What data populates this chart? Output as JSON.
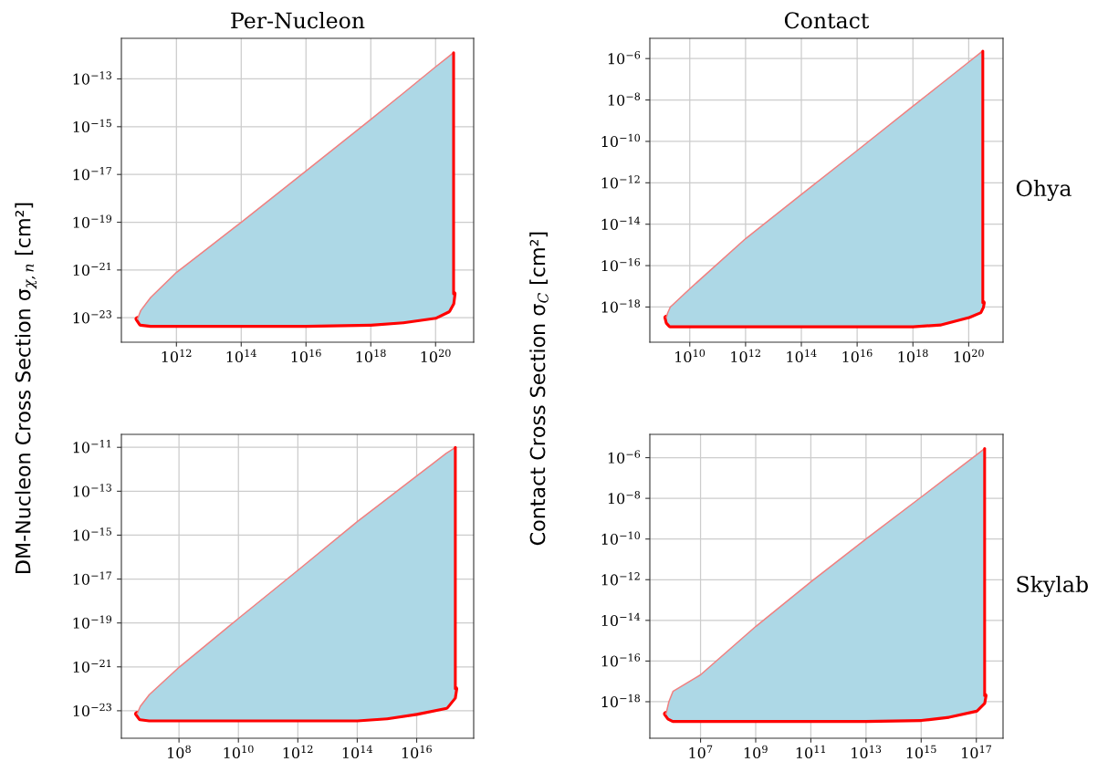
{
  "chart_data": [
    {
      "type": "area",
      "title": "Per-Nucleon",
      "ylabel": "DM-Nucleon Cross Section σ$_{χ,n}$ [cm²]",
      "log": "xy",
      "grid": true,
      "xlim": [
        20000000000.0,
        1.5e+21
      ],
      "ylim": [
        9.5e-25,
        5e-12
      ],
      "xticks": [
        {
          "value": 1000000000000.0,
          "label": "10$^{12}$"
        },
        {
          "value": 100000000000000.0,
          "label": "10$^{14}$"
        },
        {
          "value": 1e+16,
          "label": "10$^{16}$"
        },
        {
          "value": 1e+18,
          "label": "10$^{18}$"
        },
        {
          "value": 1e+20,
          "label": "10$^{20}$"
        }
      ],
      "yticks": [
        {
          "value": 1e-23,
          "label": "10$^{−23}$"
        },
        {
          "value": 1e-21,
          "label": "10$^{−21}$"
        },
        {
          "value": 1e-19,
          "label": "10$^{−19}$"
        },
        {
          "value": 1e-17,
          "label": "10$^{−17}$"
        },
        {
          "value": 1e-15,
          "label": "10$^{−15}$"
        },
        {
          "value": 1e-13,
          "label": "10$^{−13}$"
        }
      ],
      "series": [
        {
          "type": "area",
          "color": "#add8e6",
          "x": [
            63000000000.0,
            79000000000.0,
            160000000000.0,
            1000000000000.0,
            10000000000000.0,
            100000000000000.0,
            1e+16,
            1e+18,
            1e+19,
            1e+20,
            2.5e+20,
            3.3e+20,
            3.6e+20
          ],
          "values": [
            8.9e-24,
            2e-23,
            7.1e-23,
            7.9e-22,
            8.9e-21,
            1e-19,
            1.4e-17,
            2e-15,
            2.5e-14,
            3.2e-13,
            8.5e-13,
            1.15e-12,
            1.26e-12
          ]
        },
        {
          "type": "line",
          "color": "#f08080",
          "x": [
            63000000000.0,
            79000000000.0,
            160000000000.0,
            1000000000000.0,
            10000000000000.0,
            100000000000000.0,
            1e+16,
            1e+18,
            1e+19,
            1e+20,
            2.5e+20,
            3.3e+20,
            3.6e+20
          ],
          "values": [
            8.9e-24,
            2e-23,
            7.1e-23,
            7.9e-22,
            8.9e-21,
            1e-19,
            1.4e-17,
            2e-15,
            2.5e-14,
            3.2e-13,
            8.5e-13,
            1.15e-12,
            1.26e-12
          ]
        },
        {
          "type": "line",
          "color": "#ff0000",
          "x": [
            63000000000.0,
            79000000000.0,
            160000000000.0,
            1000000000000.0,
            10000000000000.0,
            100000000000000.0,
            1e+16,
            1e+18,
            1e+19,
            1e+20,
            2.5e+20,
            3.3e+20,
            3.6e+20
          ],
          "values": [
            8.9e-24,
            5.6e-24,
            5e-24,
            5e-24,
            5e-24,
            5e-24,
            5e-24,
            5.6e-24,
            7.1e-24,
            1.1e-23,
            2e-23,
            4e-23,
            1e-22
          ]
        },
        {
          "type": "line",
          "color": "#ff0000",
          "x": [
            3.6e+20,
            3.6e+20
          ],
          "values": [
            1e-22,
            1.26e-12
          ]
        }
      ]
    },
    {
      "type": "area",
      "title": "Contact",
      "ylabel": "Contact Cross Section σ$_{C}$ [cm²]",
      "y2label": "Ohya",
      "log": "xy",
      "grid": true,
      "xlim": [
        370000000.0,
        1.7e+21
      ],
      "ylim": [
        2e-20,
        9.5e-06
      ],
      "xticks": [
        {
          "value": 10000000000.0,
          "label": "10$^{10}$"
        },
        {
          "value": 1000000000000.0,
          "label": "10$^{12}$"
        },
        {
          "value": 100000000000000.0,
          "label": "10$^{14}$"
        },
        {
          "value": 1e+16,
          "label": "10$^{16}$"
        },
        {
          "value": 1e+18,
          "label": "10$^{18}$"
        },
        {
          "value": 1e+20,
          "label": "10$^{20}$"
        }
      ],
      "yticks": [
        {
          "value": 1e-18,
          "label": "10$^{−18}$"
        },
        {
          "value": 1e-16,
          "label": "10$^{−16}$"
        },
        {
          "value": 1e-14,
          "label": "10$^{−14}$"
        },
        {
          "value": 1e-12,
          "label": "10$^{−12}$"
        },
        {
          "value": 1e-10,
          "label": "10$^{−10}$"
        },
        {
          "value": 1e-08,
          "label": "10$^{−8}$"
        },
        {
          "value": 1e-06,
          "label": "10$^{−6}$"
        }
      ],
      "series": [
        {
          "type": "area",
          "color": "#add8e6",
          "x": [
            1450000000.0,
            1600000000.0,
            2000000000.0,
            10000000000.0,
            1000000000000.0,
            100000000000000.0,
            1e+16,
            1e+18,
            1e+19,
            1e+20,
            2.5e+20,
            3e+20,
            3.2e+20
          ],
          "values": [
            3.1e-19,
            5e-19,
            1e-18,
            7.6e-18,
            2e-15,
            2.7e-13,
            3.6e-11,
            5e-09,
            5.8e-08,
            6.8e-07,
            1.8e-06,
            2.2e-06,
            2.3e-06
          ]
        },
        {
          "type": "line",
          "color": "#f08080",
          "x": [
            1450000000.0,
            1600000000.0,
            2000000000.0,
            10000000000.0,
            1000000000000.0,
            100000000000000.0,
            1e+16,
            1e+18,
            1e+19,
            1e+20,
            2.5e+20,
            3e+20,
            3.2e+20
          ],
          "values": [
            3.1e-19,
            5e-19,
            1e-18,
            7.6e-18,
            2e-15,
            2.7e-13,
            3.6e-11,
            5e-09,
            5.8e-08,
            6.8e-07,
            1.8e-06,
            2.2e-06,
            2.3e-06
          ]
        },
        {
          "type": "line",
          "color": "#ff0000",
          "x": [
            1450000000.0,
            1600000000.0,
            2000000000.0,
            10000000000.0,
            1000000000000.0,
            100000000000000.0,
            1e+16,
            1e+18,
            1e+19,
            1e+20,
            2.5e+20,
            3e+20,
            3.2e+20
          ],
          "values": [
            3.1e-19,
            1.8e-19,
            1.3e-19,
            1.3e-19,
            1.3e-19,
            1.3e-19,
            1.3e-19,
            1.3e-19,
            1.6e-19,
            3.6e-19,
            6e-19,
            1e-18,
            1.6e-18
          ]
        },
        {
          "type": "line",
          "color": "#ff0000",
          "x": [
            3.2e+20,
            3.2e+20
          ],
          "values": [
            1.6e-18,
            2.3e-06
          ]
        }
      ]
    },
    {
      "type": "area",
      "log": "xy",
      "grid": true,
      "xlim": [
        1150000.0,
        8.3e+17
      ],
      "ylim": [
        5.6e-25,
        3.9e-11
      ],
      "xticks": [
        {
          "value": 100000000.0,
          "label": "10$^{8}$"
        },
        {
          "value": 10000000000.0,
          "label": "10$^{10}$"
        },
        {
          "value": 1000000000000.0,
          "label": "10$^{12}$"
        },
        {
          "value": 100000000000000.0,
          "label": "10$^{14}$"
        },
        {
          "value": 1e+16,
          "label": "10$^{16}$"
        }
      ],
      "yticks": [
        {
          "value": 1e-23,
          "label": "10$^{−23}$"
        },
        {
          "value": 1e-21,
          "label": "10$^{−21}$"
        },
        {
          "value": 1e-19,
          "label": "10$^{−19}$"
        },
        {
          "value": 1e-17,
          "label": "10$^{−17}$"
        },
        {
          "value": 1e-15,
          "label": "10$^{−15}$"
        },
        {
          "value": 1e-13,
          "label": "10$^{−13}$"
        },
        {
          "value": 1e-11,
          "label": "10$^{−11}$"
        }
      ],
      "series": [
        {
          "type": "area",
          "color": "#add8e6",
          "x": [
            3900000.0,
            5000000.0,
            10000000.0,
            100000000.0,
            10000000000.0,
            1000000000000.0,
            100000000000000.0,
            1000000000000000.0,
            1e+16,
            1e+17,
            1.8e+17,
            2e+17
          ],
          "values": [
            7.2e-24,
            1.6e-23,
            5.4e-23,
            9.5e-22,
            1.6e-19,
            2.5e-17,
            4.1e-15,
            4.5e-14,
            4.9e-13,
            5.4e-12,
            8.9e-12,
            1e-11
          ]
        },
        {
          "type": "line",
          "color": "#f08080",
          "x": [
            3900000.0,
            5000000.0,
            10000000.0,
            100000000.0,
            10000000000.0,
            1000000000000.0,
            100000000000000.0,
            1000000000000000.0,
            1e+16,
            1e+17,
            1.8e+17,
            2e+17
          ],
          "values": [
            7.2e-24,
            1.6e-23,
            5.4e-23,
            9.5e-22,
            1.6e-19,
            2.5e-17,
            4.1e-15,
            4.5e-14,
            4.9e-13,
            5.4e-12,
            8.9e-12,
            1e-11
          ]
        },
        {
          "type": "line",
          "color": "#ff0000",
          "x": [
            3900000.0,
            5000000.0,
            10000000.0,
            100000000.0,
            10000000000.0,
            1000000000000.0,
            100000000000000.0,
            1000000000000000.0,
            1e+16,
            1e+17,
            1.8e+17,
            2e+17
          ],
          "values": [
            7.2e-24,
            4.5e-24,
            4e-24,
            4e-24,
            4e-24,
            4e-24,
            4e-24,
            5e-24,
            7.9e-24,
            1.5e-23,
            4e-23,
            1e-22
          ]
        },
        {
          "type": "line",
          "color": "#ff0000",
          "x": [
            2e+17,
            2e+17
          ],
          "values": [
            1e-22,
            1e-11
          ]
        }
      ]
    },
    {
      "type": "area",
      "y2label": "Skylab",
      "log": "xy",
      "grid": true,
      "xlim": [
        145000.0,
        9.3e+17
      ],
      "ylim": [
        1.6e-20,
        1.4e-05
      ],
      "xticks": [
        {
          "value": 10000000.0,
          "label": "10$^{7}$"
        },
        {
          "value": 1000000000.0,
          "label": "10$^{9}$"
        },
        {
          "value": 100000000000.0,
          "label": "10$^{11}$"
        },
        {
          "value": 10000000000000.0,
          "label": "10$^{13}$"
        },
        {
          "value": 1000000000000000.0,
          "label": "10$^{15}$"
        },
        {
          "value": 1e+17,
          "label": "10$^{17}$"
        }
      ],
      "yticks": [
        {
          "value": 1e-18,
          "label": "10$^{−18}$"
        },
        {
          "value": 1e-16,
          "label": "10$^{−16}$"
        },
        {
          "value": 1e-14,
          "label": "10$^{−14}$"
        },
        {
          "value": 1e-12,
          "label": "10$^{−12}$"
        },
        {
          "value": 1e-10,
          "label": "10$^{−10}$"
        },
        {
          "value": 1e-08,
          "label": "10$^{−8}$"
        },
        {
          "value": 1e-06,
          "label": "10$^{−6}$"
        }
      ],
      "series": [
        {
          "type": "area",
          "color": "#add8e6",
          "x": [
            560000.0,
            710000.0,
            1000000.0,
            10000000.0,
            1000000000.0,
            100000000000.0,
            10000000000000.0,
            1000000000000000.0,
            1e+16,
            1e+17,
            1.8e+17,
            2e+17
          ],
          "values": [
            2.5e-19,
            1e-18,
            3.2e-18,
            2.1e-17,
            5e-15,
            7.9e-13,
            1e-10,
            1.15e-08,
            1.26e-07,
            1.35e-06,
            2.5e-06,
            2.8e-06
          ]
        },
        {
          "type": "line",
          "color": "#f08080",
          "x": [
            560000.0,
            710000.0,
            1000000.0,
            10000000.0,
            1000000000.0,
            100000000000.0,
            10000000000000.0,
            1000000000000000.0,
            1e+16,
            1e+17,
            1.8e+17,
            2e+17
          ],
          "values": [
            2.5e-19,
            1e-18,
            3.2e-18,
            2.1e-17,
            5e-15,
            7.9e-13,
            1e-10,
            1.15e-08,
            1.26e-07,
            1.35e-06,
            2.5e-06,
            2.8e-06
          ]
        },
        {
          "type": "line",
          "color": "#ff0000",
          "x": [
            560000.0,
            710000.0,
            1000000.0,
            10000000.0,
            1000000000.0,
            100000000000.0,
            10000000000000.0,
            1000000000000000.0,
            1e+16,
            1e+17,
            1.8e+17,
            2e+17
          ],
          "values": [
            2.5e-19,
            1.6e-19,
            1.26e-19,
            1.26e-19,
            1.26e-19,
            1.26e-19,
            1.26e-19,
            1.4e-19,
            2e-19,
            4e-19,
            8.9e-19,
            2e-18
          ]
        },
        {
          "type": "line",
          "color": "#ff0000",
          "x": [
            2e+17,
            2e+17
          ],
          "values": [
            2e-18,
            2.8e-06
          ]
        }
      ]
    }
  ]
}
